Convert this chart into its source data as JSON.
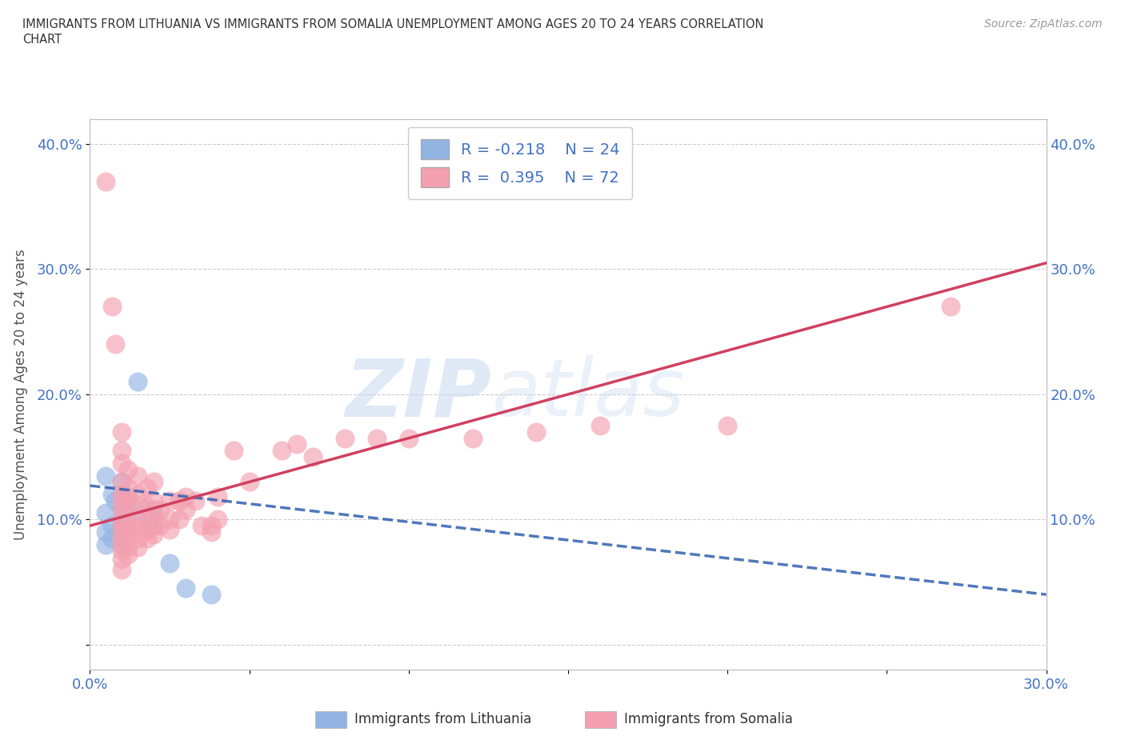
{
  "title_line1": "IMMIGRANTS FROM LITHUANIA VS IMMIGRANTS FROM SOMALIA UNEMPLOYMENT AMONG AGES 20 TO 24 YEARS CORRELATION",
  "title_line2": "CHART",
  "source": "Source: ZipAtlas.com",
  "ylabel": "Unemployment Among Ages 20 to 24 years",
  "xlabel_lithuania": "Immigrants from Lithuania",
  "xlabel_somalia": "Immigrants from Somalia",
  "legend_R_lithuania": "R = -0.218",
  "legend_N_lithuania": "N = 24",
  "legend_R_somalia": "R =  0.395",
  "legend_N_somalia": "N = 72",
  "xmin": 0.0,
  "xmax": 0.3,
  "ymin": -0.02,
  "ymax": 0.42,
  "yticks": [
    0.0,
    0.1,
    0.2,
    0.3,
    0.4
  ],
  "ytick_labels": [
    "",
    "10.0%",
    "20.0%",
    "30.0%",
    "40.0%"
  ],
  "xticks": [
    0.0,
    0.05,
    0.1,
    0.15,
    0.2,
    0.25,
    0.3
  ],
  "xtick_labels": [
    "0.0%",
    "",
    "",
    "",
    "",
    "",
    "30.0%"
  ],
  "color_lithuania": "#92b4e3",
  "color_somalia": "#f4a0b0",
  "line_color_lithuania": "#3060b0",
  "line_color_somalia": "#d04060",
  "watermark_zip": "ZIP",
  "watermark_atlas": "atlas",
  "lithuania_scatter": [
    [
      0.005,
      0.135
    ],
    [
      0.005,
      0.105
    ],
    [
      0.005,
      0.09
    ],
    [
      0.005,
      0.08
    ],
    [
      0.007,
      0.12
    ],
    [
      0.007,
      0.095
    ],
    [
      0.007,
      0.085
    ],
    [
      0.008,
      0.115
    ],
    [
      0.01,
      0.13
    ],
    [
      0.01,
      0.11
    ],
    [
      0.01,
      0.1
    ],
    [
      0.01,
      0.095
    ],
    [
      0.01,
      0.088
    ],
    [
      0.01,
      0.08
    ],
    [
      0.012,
      0.118
    ],
    [
      0.012,
      0.092
    ],
    [
      0.015,
      0.21
    ],
    [
      0.015,
      0.105
    ],
    [
      0.018,
      0.095
    ],
    [
      0.02,
      0.108
    ],
    [
      0.02,
      0.095
    ],
    [
      0.025,
      0.065
    ],
    [
      0.03,
      0.045
    ],
    [
      0.038,
      0.04
    ]
  ],
  "somalia_scatter": [
    [
      0.005,
      0.37
    ],
    [
      0.007,
      0.27
    ],
    [
      0.008,
      0.24
    ],
    [
      0.01,
      0.17
    ],
    [
      0.01,
      0.155
    ],
    [
      0.01,
      0.145
    ],
    [
      0.01,
      0.13
    ],
    [
      0.01,
      0.12
    ],
    [
      0.01,
      0.115
    ],
    [
      0.01,
      0.108
    ],
    [
      0.01,
      0.1
    ],
    [
      0.01,
      0.095
    ],
    [
      0.01,
      0.09
    ],
    [
      0.01,
      0.085
    ],
    [
      0.01,
      0.08
    ],
    [
      0.01,
      0.075
    ],
    [
      0.01,
      0.068
    ],
    [
      0.01,
      0.06
    ],
    [
      0.012,
      0.14
    ],
    [
      0.012,
      0.125
    ],
    [
      0.012,
      0.118
    ],
    [
      0.012,
      0.108
    ],
    [
      0.012,
      0.098
    ],
    [
      0.012,
      0.092
    ],
    [
      0.012,
      0.085
    ],
    [
      0.012,
      0.078
    ],
    [
      0.012,
      0.072
    ],
    [
      0.015,
      0.135
    ],
    [
      0.015,
      0.12
    ],
    [
      0.015,
      0.112
    ],
    [
      0.015,
      0.1
    ],
    [
      0.015,
      0.092
    ],
    [
      0.015,
      0.085
    ],
    [
      0.015,
      0.078
    ],
    [
      0.018,
      0.125
    ],
    [
      0.018,
      0.11
    ],
    [
      0.018,
      0.1
    ],
    [
      0.018,
      0.092
    ],
    [
      0.018,
      0.085
    ],
    [
      0.02,
      0.13
    ],
    [
      0.02,
      0.115
    ],
    [
      0.02,
      0.105
    ],
    [
      0.02,
      0.095
    ],
    [
      0.02,
      0.088
    ],
    [
      0.022,
      0.108
    ],
    [
      0.022,
      0.095
    ],
    [
      0.025,
      0.115
    ],
    [
      0.025,
      0.1
    ],
    [
      0.025,
      0.092
    ],
    [
      0.028,
      0.115
    ],
    [
      0.028,
      0.1
    ],
    [
      0.03,
      0.118
    ],
    [
      0.03,
      0.108
    ],
    [
      0.033,
      0.115
    ],
    [
      0.035,
      0.095
    ],
    [
      0.038,
      0.095
    ],
    [
      0.038,
      0.09
    ],
    [
      0.04,
      0.118
    ],
    [
      0.04,
      0.1
    ],
    [
      0.045,
      0.155
    ],
    [
      0.05,
      0.13
    ],
    [
      0.06,
      0.155
    ],
    [
      0.065,
      0.16
    ],
    [
      0.07,
      0.15
    ],
    [
      0.08,
      0.165
    ],
    [
      0.09,
      0.165
    ],
    [
      0.1,
      0.165
    ],
    [
      0.12,
      0.165
    ],
    [
      0.14,
      0.17
    ],
    [
      0.16,
      0.175
    ],
    [
      0.2,
      0.175
    ],
    [
      0.27,
      0.27
    ]
  ],
  "lith_line": [
    0.0,
    0.127,
    0.3,
    0.04
  ],
  "som_line": [
    0.0,
    0.095,
    0.3,
    0.305
  ]
}
